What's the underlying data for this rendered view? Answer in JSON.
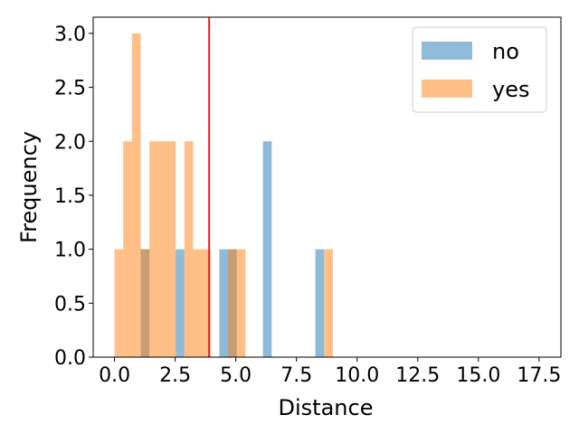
{
  "chart_data": {
    "type": "histogram",
    "xlabel": "Distance",
    "ylabel": "Frequency",
    "xlim": [
      -0.88,
      18.4
    ],
    "ylim": [
      0,
      3.15
    ],
    "xticks": [
      0.0,
      2.5,
      5.0,
      7.5,
      10.0,
      12.5,
      15.0,
      17.5
    ],
    "xtick_labels": [
      "0.0",
      "2.5",
      "5.0",
      "7.5",
      "10.0",
      "12.5",
      "15.0",
      "17.5"
    ],
    "yticks": [
      0.0,
      0.5,
      1.0,
      1.5,
      2.0,
      2.5,
      3.0
    ],
    "ytick_labels": [
      "0.0",
      "0.5",
      "1.0",
      "1.5",
      "2.0",
      "2.5",
      "3.0"
    ],
    "grid": false,
    "legend_position": "top-right",
    "bin_width": 0.36,
    "vline": {
      "x": 3.9,
      "color": "#d62728"
    },
    "series": [
      {
        "name": "no",
        "color": "#1f77b4",
        "alpha": 0.5,
        "bins": [
          {
            "x0": 1.08,
            "count": 1
          },
          {
            "x0": 2.52,
            "count": 1
          },
          {
            "x0": 4.32,
            "count": 1
          },
          {
            "x0": 4.68,
            "count": 1
          },
          {
            "x0": 6.12,
            "count": 2
          },
          {
            "x0": 8.28,
            "count": 1
          }
        ]
      },
      {
        "name": "yes",
        "color": "#ff7f0e",
        "alpha": 0.5,
        "bins": [
          {
            "x0": 0.0,
            "count": 1
          },
          {
            "x0": 0.36,
            "count": 2
          },
          {
            "x0": 0.72,
            "count": 3
          },
          {
            "x0": 1.08,
            "count": 1
          },
          {
            "x0": 1.44,
            "count": 2
          },
          {
            "x0": 1.8,
            "count": 2
          },
          {
            "x0": 2.16,
            "count": 2
          },
          {
            "x0": 2.88,
            "count": 2
          },
          {
            "x0": 3.24,
            "count": 1
          },
          {
            "x0": 3.6,
            "count": 1
          },
          {
            "x0": 4.68,
            "count": 1
          },
          {
            "x0": 5.04,
            "count": 1
          },
          {
            "x0": 8.64,
            "count": 1
          }
        ]
      }
    ]
  }
}
